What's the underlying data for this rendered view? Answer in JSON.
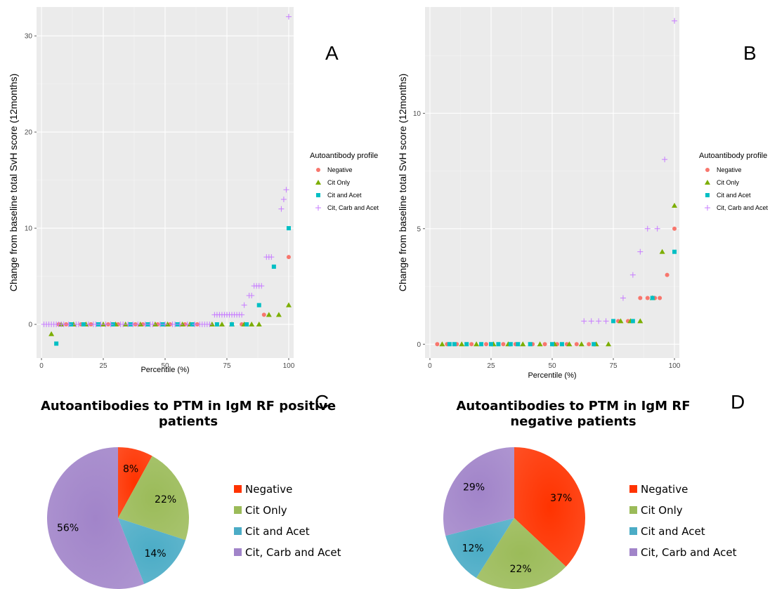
{
  "chart_data": [
    {
      "panel": "A",
      "type": "scatter",
      "xlabel": "Percentile (%)",
      "ylabel": "Change from baseline total SvH score (12months)",
      "xlim": [
        -2,
        102
      ],
      "ylim": [
        -3.5,
        33
      ],
      "xticks": [
        0,
        25,
        50,
        75,
        100
      ],
      "yticks": [
        0,
        10,
        20,
        30
      ],
      "legend_title": "Autoantibody profile",
      "legend_position": "right",
      "grid": true,
      "series": [
        {
          "name": "Negative",
          "color": "#F8766D",
          "marker": "circle",
          "points": [
            [
              7,
              0
            ],
            [
              10,
              0
            ],
            [
              16,
              0
            ],
            [
              20,
              0
            ],
            [
              27,
              0
            ],
            [
              31,
              0
            ],
            [
              38,
              0
            ],
            [
              41,
              0
            ],
            [
              47,
              0
            ],
            [
              52,
              0
            ],
            [
              58,
              0
            ],
            [
              63,
              0
            ],
            [
              81,
              0
            ],
            [
              90,
              1
            ],
            [
              100,
              7
            ]
          ]
        },
        {
          "name": "Cit Only",
          "color": "#7CAE00",
          "marker": "triangle",
          "points": [
            [
              4,
              -1
            ],
            [
              8,
              0
            ],
            [
              13,
              0
            ],
            [
              18,
              0
            ],
            [
              25,
              0
            ],
            [
              30,
              0
            ],
            [
              34,
              0
            ],
            [
              40,
              0
            ],
            [
              46,
              0
            ],
            [
              51,
              0
            ],
            [
              57,
              0
            ],
            [
              60,
              0
            ],
            [
              69,
              0
            ],
            [
              73,
              0
            ],
            [
              77,
              0
            ],
            [
              82,
              0
            ],
            [
              85,
              0
            ],
            [
              88,
              0
            ],
            [
              92,
              1
            ],
            [
              96,
              1
            ],
            [
              100,
              2
            ]
          ]
        },
        {
          "name": "Cit and Acet",
          "color": "#00BFC4",
          "marker": "square",
          "points": [
            [
              6,
              -2
            ],
            [
              12,
              0
            ],
            [
              17,
              0
            ],
            [
              23,
              0
            ],
            [
              29,
              0
            ],
            [
              36,
              0
            ],
            [
              43,
              0
            ],
            [
              49,
              0
            ],
            [
              55,
              0
            ],
            [
              61,
              0
            ],
            [
              71,
              0
            ],
            [
              77,
              0
            ],
            [
              83,
              0
            ],
            [
              88,
              2
            ],
            [
              94,
              6
            ],
            [
              100,
              10
            ]
          ]
        },
        {
          "name": "Cit, Carb and Acet",
          "color": "#C77CFF",
          "marker": "plus",
          "points": [
            [
              1,
              0
            ],
            [
              2,
              0
            ],
            [
              3,
              0
            ],
            [
              4,
              0
            ],
            [
              5,
              0
            ],
            [
              6,
              0
            ],
            [
              7,
              0
            ],
            [
              8,
              0
            ],
            [
              9,
              0
            ],
            [
              11,
              0
            ],
            [
              14,
              0
            ],
            [
              15,
              0
            ],
            [
              19,
              0
            ],
            [
              21,
              0
            ],
            [
              22,
              0
            ],
            [
              24,
              0
            ],
            [
              26,
              0
            ],
            [
              28,
              0
            ],
            [
              32,
              0
            ],
            [
              33,
              0
            ],
            [
              35,
              0
            ],
            [
              37,
              0
            ],
            [
              39,
              0
            ],
            [
              42,
              0
            ],
            [
              44,
              0
            ],
            [
              45,
              0
            ],
            [
              48,
              0
            ],
            [
              50,
              0
            ],
            [
              53,
              0
            ],
            [
              54,
              0
            ],
            [
              56,
              0
            ],
            [
              59,
              0
            ],
            [
              62,
              0
            ],
            [
              64,
              0
            ],
            [
              65,
              0
            ],
            [
              66,
              0
            ],
            [
              67,
              0
            ],
            [
              68,
              0
            ],
            [
              70,
              1
            ],
            [
              71,
              1
            ],
            [
              72,
              1
            ],
            [
              73,
              1
            ],
            [
              74,
              1
            ],
            [
              75,
              1
            ],
            [
              76,
              1
            ],
            [
              77,
              1
            ],
            [
              78,
              1
            ],
            [
              79,
              1
            ],
            [
              80,
              1
            ],
            [
              81,
              1
            ],
            [
              82,
              2
            ],
            [
              84,
              3
            ],
            [
              85,
              3
            ],
            [
              86,
              4
            ],
            [
              87,
              4
            ],
            [
              88,
              4
            ],
            [
              89,
              4
            ],
            [
              91,
              7
            ],
            [
              92,
              7
            ],
            [
              93,
              7
            ],
            [
              97,
              12
            ],
            [
              98,
              13
            ],
            [
              99,
              14
            ],
            [
              100,
              32
            ]
          ]
        }
      ]
    },
    {
      "panel": "B",
      "type": "scatter",
      "xlabel": "Percentile (%)",
      "ylabel": "Change from baseline total SvH score (12months)",
      "xlim": [
        -2,
        102
      ],
      "ylim": [
        -0.6,
        14.6
      ],
      "xticks": [
        0,
        25,
        50,
        75,
        100
      ],
      "yticks": [
        0,
        5,
        10
      ],
      "legend_title": "Autoantibody profile",
      "legend_position": "right",
      "grid": true,
      "series": [
        {
          "name": "Negative",
          "color": "#F8766D",
          "marker": "circle",
          "points": [
            [
              3,
              0
            ],
            [
              7,
              0
            ],
            [
              11,
              0
            ],
            [
              17,
              0
            ],
            [
              23,
              0
            ],
            [
              30,
              0
            ],
            [
              35,
              0
            ],
            [
              42,
              0
            ],
            [
              47,
              0
            ],
            [
              52,
              0
            ],
            [
              56,
              0
            ],
            [
              60,
              0
            ],
            [
              65,
              0
            ],
            [
              77,
              1
            ],
            [
              81,
              1
            ],
            [
              86,
              2
            ],
            [
              89,
              2
            ],
            [
              92,
              2
            ],
            [
              94,
              2
            ],
            [
              97,
              3
            ],
            [
              100,
              5
            ]
          ]
        },
        {
          "name": "Cit Only",
          "color": "#7CAE00",
          "marker": "triangle",
          "points": [
            [
              5,
              0
            ],
            [
              13,
              0
            ],
            [
              19,
              0
            ],
            [
              26,
              0
            ],
            [
              32,
              0
            ],
            [
              38,
              0
            ],
            [
              45,
              0
            ],
            [
              51,
              0
            ],
            [
              57,
              0
            ],
            [
              62,
              0
            ],
            [
              68,
              0
            ],
            [
              73,
              0
            ],
            [
              78,
              1
            ],
            [
              82,
              1
            ],
            [
              86,
              1
            ],
            [
              91,
              2
            ],
            [
              95,
              4
            ],
            [
              100,
              6
            ]
          ]
        },
        {
          "name": "Cit and Acet",
          "color": "#00BFC4",
          "marker": "square",
          "points": [
            [
              8,
              0
            ],
            [
              10,
              0
            ],
            [
              15,
              0
            ],
            [
              21,
              0
            ],
            [
              25,
              0
            ],
            [
              28,
              0
            ],
            [
              33,
              0
            ],
            [
              36,
              0
            ],
            [
              41,
              0
            ],
            [
              50,
              0
            ],
            [
              54,
              0
            ],
            [
              67,
              0
            ],
            [
              75,
              1
            ],
            [
              83,
              1
            ],
            [
              91,
              2
            ],
            [
              100,
              4
            ]
          ]
        },
        {
          "name": "Cit, Carb and Acet",
          "color": "#C77CFF",
          "marker": "plus",
          "points": [
            [
              63,
              1
            ],
            [
              66,
              1
            ],
            [
              69,
              1
            ],
            [
              72,
              1
            ],
            [
              79,
              2
            ],
            [
              83,
              3
            ],
            [
              86,
              4
            ],
            [
              89,
              5
            ],
            [
              93,
              5
            ],
            [
              96,
              8
            ],
            [
              100,
              14
            ]
          ]
        }
      ]
    },
    {
      "panel": "C",
      "type": "pie",
      "title": "Autoantibodies to PTM in IgM RF positive patients",
      "labels": [
        "Negative",
        "Cit Only",
        "Cit and Acet",
        "Cit, Carb and Acet"
      ],
      "values": [
        8,
        22,
        14,
        56
      ],
      "display": [
        "8%",
        "22%",
        "14%",
        "56%"
      ],
      "colors": [
        "#FF3300",
        "#9BBB59",
        "#4BACC6",
        "#A184C9"
      ]
    },
    {
      "panel": "D",
      "type": "pie",
      "title": "Autoantibodies to PTM in IgM RF negative patients",
      "labels": [
        "Negative",
        "Cit Only",
        "Cit and Acet",
        "Cit, Carb and Acet"
      ],
      "values": [
        37,
        22,
        12,
        29
      ],
      "display": [
        "37%",
        "22%",
        "12%",
        "29%"
      ],
      "colors": [
        "#FF3300",
        "#9BBB59",
        "#4BACC6",
        "#A184C9"
      ]
    }
  ],
  "panels": {
    "a": {
      "letter": "A",
      "xlabel": "Percentile (%)",
      "ylabel": "Change from baseline total SvH score (12months)",
      "legend_title": "Autoantibody profile"
    },
    "b": {
      "letter": "B",
      "xlabel": "Percentile (%)",
      "ylabel": "Change from baseline total SvH score (12months)",
      "legend_title": "Autoantibody profile"
    },
    "c": {
      "letter": "C",
      "title_line1": "Autoantibodies to PTM in IgM RF positive",
      "title_line2": "patients"
    },
    "d": {
      "letter": "D",
      "title_line1": "Autoantibodies to PTM in IgM RF",
      "title_line2": "negative patients"
    }
  },
  "legend_items": [
    "Negative",
    "Cit Only",
    "Cit and Acet",
    "Cit, Carb and Acet"
  ]
}
